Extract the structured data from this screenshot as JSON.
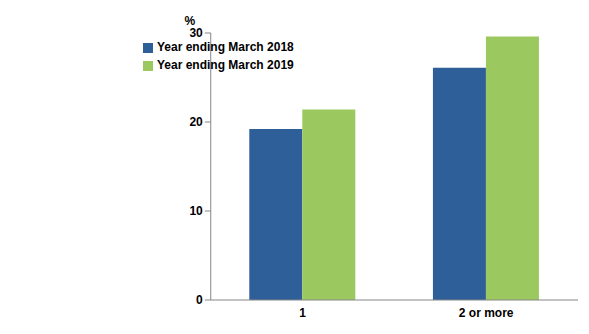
{
  "chart_data": {
    "type": "bar",
    "y_label": "%",
    "categories": [
      "1",
      "2 or more"
    ],
    "series": [
      {
        "name": "Year ending March 2018",
        "color": "#2e5f98",
        "values": [
          19.2,
          26.1
        ]
      },
      {
        "name": "Year ending March 2019",
        "color": "#9bc95f",
        "values": [
          21.4,
          29.6
        ]
      }
    ],
    "ylim": [
      0,
      30
    ],
    "yticks": [
      0,
      10,
      20,
      30
    ],
    "grid": false,
    "legend": "upper left"
  }
}
